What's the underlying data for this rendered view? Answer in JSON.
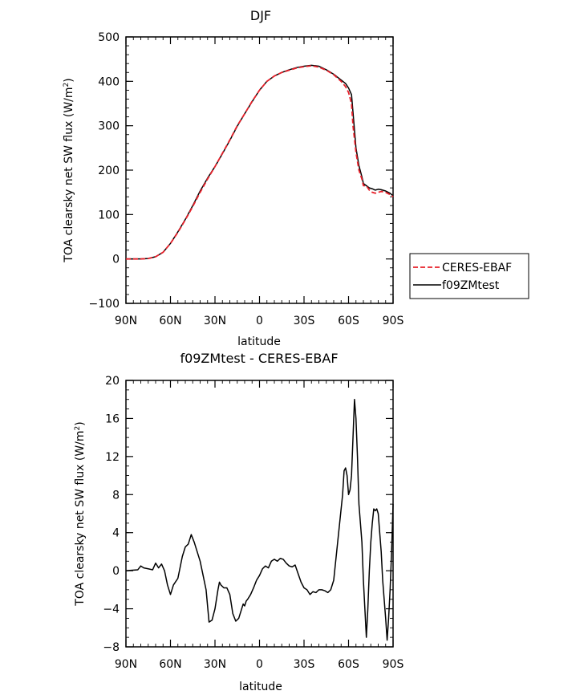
{
  "chart_data": [
    {
      "type": "line",
      "title": "DJF",
      "xlabel": "latitude",
      "ylabel_main": "TOA clearsky net SW flux (W/m",
      "ylabel_sup": "2",
      "ylabel_end": ")",
      "xlim": [
        -90,
        90
      ],
      "ylim": [
        -100,
        500
      ],
      "xticks": [
        {
          "value": -90,
          "label": "90N"
        },
        {
          "value": -60,
          "label": "60N"
        },
        {
          "value": -30,
          "label": "30N"
        },
        {
          "value": 0,
          "label": "0"
        },
        {
          "value": 30,
          "label": "30S"
        },
        {
          "value": 60,
          "label": "60S"
        },
        {
          "value": 90,
          "label": "90S"
        }
      ],
      "yticks": [
        -100,
        0,
        100,
        200,
        300,
        400,
        500
      ],
      "legend_position": "right",
      "series": [
        {
          "name": "CERES-EBAF",
          "color": "#e8202a",
          "dash": "dashed",
          "x": [
            -90,
            -80,
            -75,
            -70,
            -65,
            -60,
            -55,
            -50,
            -45,
            -40,
            -35,
            -30,
            -25,
            -20,
            -15,
            -10,
            -5,
            0,
            5,
            10,
            15,
            20,
            25,
            30,
            35,
            40,
            45,
            50,
            55,
            58,
            60,
            62,
            63,
            64,
            65,
            67,
            69,
            70,
            72,
            74,
            76,
            78,
            80,
            82,
            85,
            88,
            90
          ],
          "y": [
            0,
            0,
            1,
            5,
            15,
            35,
            60,
            88,
            118,
            150,
            180,
            208,
            238,
            268,
            300,
            327,
            355,
            380,
            400,
            412,
            420,
            425,
            430,
            433,
            435,
            432,
            425,
            415,
            400,
            388,
            375,
            350,
            300,
            270,
            240,
            200,
            180,
            165,
            165,
            155,
            150,
            148,
            150,
            152,
            150,
            145,
            140
          ]
        },
        {
          "name": "f09ZMtest",
          "color": "#000000",
          "dash": "solid",
          "x": [
            -90,
            -80,
            -75,
            -70,
            -65,
            -60,
            -55,
            -50,
            -45,
            -40,
            -35,
            -30,
            -25,
            -20,
            -15,
            -10,
            -5,
            0,
            5,
            10,
            15,
            20,
            25,
            30,
            35,
            40,
            45,
            50,
            55,
            58,
            60,
            62,
            63,
            64,
            65,
            67,
            69,
            70,
            72,
            74,
            76,
            78,
            80,
            82,
            85,
            88,
            90
          ],
          "y": [
            0,
            0,
            1,
            5,
            15,
            35,
            61,
            89,
            120,
            153,
            182,
            208,
            237,
            267,
            299,
            327,
            354,
            380,
            400,
            412,
            420,
            426,
            431,
            434,
            436,
            434,
            426,
            416,
            403,
            395,
            385,
            370,
            330,
            290,
            250,
            210,
            185,
            170,
            165,
            160,
            158,
            155,
            157,
            156,
            153,
            148,
            142
          ]
        }
      ]
    },
    {
      "type": "line",
      "title": "f09ZMtest - CERES-EBAF",
      "xlabel": "latitude",
      "ylabel_main": "TOA clearsky net SW flux (W/m",
      "ylabel_sup": "2",
      "ylabel_end": ")",
      "xlim": [
        -90,
        90
      ],
      "ylim": [
        -8,
        20
      ],
      "xticks": [
        {
          "value": -90,
          "label": "90N"
        },
        {
          "value": -60,
          "label": "60N"
        },
        {
          "value": -30,
          "label": "30N"
        },
        {
          "value": 0,
          "label": "0"
        },
        {
          "value": 30,
          "label": "30S"
        },
        {
          "value": 60,
          "label": "60S"
        },
        {
          "value": 90,
          "label": "90S"
        }
      ],
      "yticks": [
        -8,
        -4,
        0,
        4,
        8,
        12,
        16,
        20
      ],
      "series": [
        {
          "color": "#000000",
          "dash": "solid",
          "x": [
            -90,
            -82,
            -80,
            -78,
            -75,
            -72,
            -70,
            -68,
            -66,
            -64,
            -62,
            -60,
            -58,
            -55,
            -52,
            -50,
            -48,
            -46,
            -44,
            -42,
            -40,
            -38,
            -36,
            -34,
            -32,
            -30,
            -29,
            -28,
            -27,
            -26,
            -24,
            -22,
            -20,
            -18,
            -16,
            -14,
            -12,
            -11,
            -10,
            -9,
            -8,
            -6,
            -4,
            -2,
            0,
            2,
            4,
            6,
            8,
            10,
            12,
            14,
            16,
            18,
            20,
            22,
            24,
            26,
            28,
            30,
            32,
            34,
            36,
            38,
            40,
            42,
            44,
            46,
            48,
            50,
            52,
            54,
            56,
            57,
            58,
            59,
            60,
            61,
            62,
            63,
            64,
            65,
            66,
            67,
            68,
            69,
            70,
            71,
            72,
            73,
            74,
            75,
            76,
            77,
            78,
            79,
            80,
            81,
            82,
            83,
            84,
            85,
            86,
            87,
            88,
            89,
            90
          ],
          "y": [
            0,
            0.1,
            0.5,
            0.3,
            0.2,
            0.1,
            0.8,
            0.3,
            0.7,
            0,
            -1.5,
            -2.5,
            -1.5,
            -0.8,
            1.5,
            2.5,
            2.8,
            3.8,
            3,
            2,
            1,
            -0.5,
            -2,
            -5.4,
            -5.2,
            -4,
            -3,
            -2,
            -1.2,
            -1.5,
            -1.8,
            -1.8,
            -2.5,
            -4.5,
            -5.3,
            -5,
            -4,
            -3.5,
            -3.7,
            -3.2,
            -3,
            -2.5,
            -1.8,
            -1,
            -0.5,
            0.2,
            0.5,
            0.3,
            1,
            1.2,
            1,
            1.3,
            1.2,
            0.8,
            0.5,
            0.4,
            0.6,
            -0.3,
            -1.2,
            -1.8,
            -2,
            -2.5,
            -2.2,
            -2.3,
            -2,
            -2,
            -2.1,
            -2.3,
            -2,
            -1,
            2,
            5,
            8,
            10.5,
            10.8,
            10,
            8,
            8.5,
            10,
            14,
            18,
            16,
            12,
            7,
            5,
            3,
            -1,
            -4,
            -7,
            -4,
            0,
            3,
            5,
            6.5,
            6.3,
            6.5,
            6,
            4,
            2,
            -1,
            -3,
            -5,
            -7.3,
            -5,
            -2,
            2,
            7
          ]
        }
      ]
    }
  ]
}
